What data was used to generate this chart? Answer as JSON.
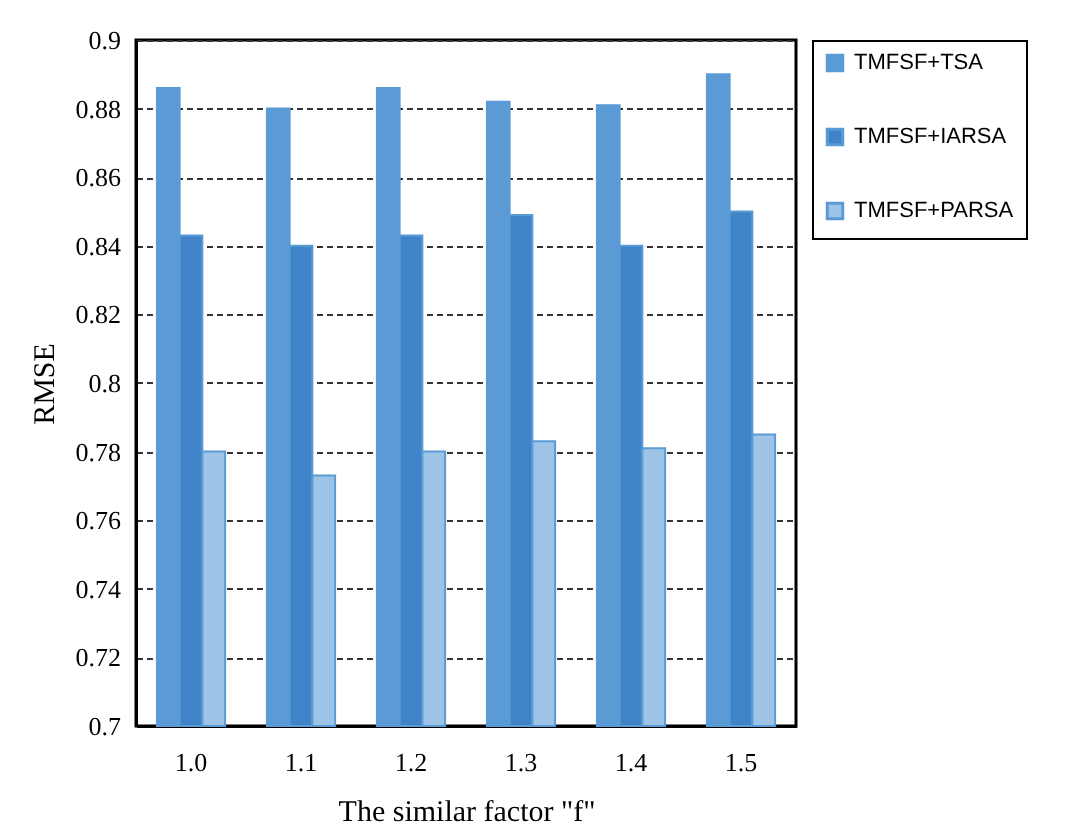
{
  "chart_data": {
    "type": "bar",
    "xlabel": "The similar factor \"f\"",
    "ylabel": "RMSE",
    "categories": [
      "1.0",
      "1.1",
      "1.2",
      "1.3",
      "1.4",
      "1.5"
    ],
    "series": [
      {
        "name": "TMFSF+TSA",
        "color": "#5b9bd5",
        "values": [
          0.886,
          0.88,
          0.886,
          0.882,
          0.881,
          0.89
        ]
      },
      {
        "name": "TMFSF+IARSA",
        "color": "#3f83c9",
        "values": [
          0.843,
          0.84,
          0.843,
          0.849,
          0.84,
          0.85
        ]
      },
      {
        "name": "TMFSF+PARSA",
        "color": "#9dc3e6",
        "values": [
          0.78,
          0.773,
          0.78,
          0.783,
          0.781,
          0.785
        ]
      }
    ],
    "ylim": [
      0.7,
      0.9
    ],
    "yticks": [
      0.7,
      0.72,
      0.74,
      0.76,
      0.78,
      0.8,
      0.82,
      0.84,
      0.86,
      0.88,
      0.9
    ],
    "grid": "y",
    "legend": "right"
  }
}
